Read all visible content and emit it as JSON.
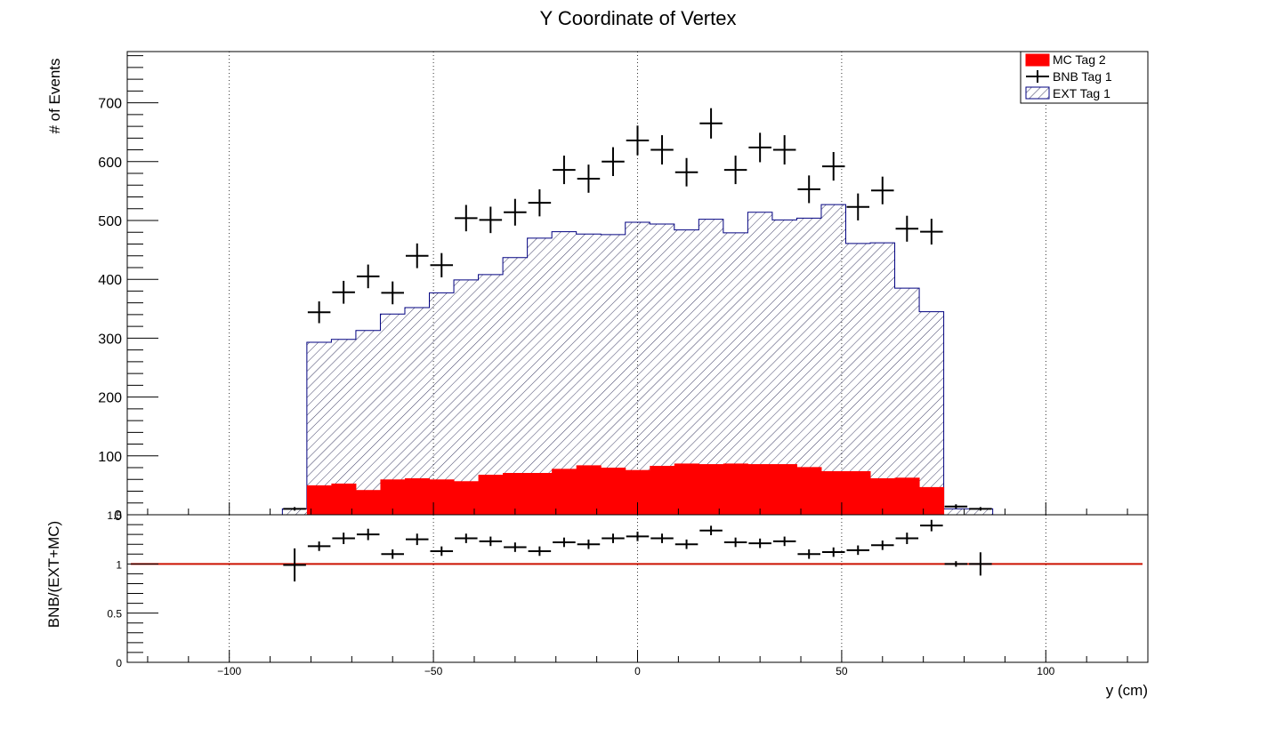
{
  "chart_data": [
    {
      "type": "bar",
      "title": "Y Coordinate of Vertex",
      "xlabel": "",
      "ylabel": "# of Events",
      "xlim": [
        -125,
        125
      ],
      "ylim": [
        0,
        787
      ],
      "grid": "vertical dotted",
      "legend": {
        "placement": "top-right",
        "entries": [
          "MC Tag 2",
          "BNB Tag 1",
          "EXT Tag 1"
        ]
      },
      "x_ticks": [
        "−100",
        "−50",
        "0",
        "50",
        "100"
      ],
      "y_ticks": [
        "700",
        "600",
        "500",
        "400",
        "300",
        "200",
        "100",
        "0"
      ],
      "bin_edges": [
        -87,
        -81,
        -75,
        -69,
        -63,
        -57,
        -51,
        -45,
        -39,
        -33,
        -27,
        -21,
        -15,
        -9,
        -3,
        3,
        9,
        15,
        21,
        27,
        33,
        39,
        45,
        51,
        57,
        63,
        69,
        75,
        81,
        87
      ],
      "series": [
        {
          "name": "EXT Tag 1",
          "kind": "hatched-histogram",
          "values": [
            10,
            293,
            298,
            313,
            341,
            352,
            377,
            399,
            408,
            437,
            470,
            481,
            477,
            476,
            497,
            494,
            484,
            502,
            479,
            514,
            501,
            504,
            527,
            461,
            462,
            385,
            345,
            10,
            10
          ]
        },
        {
          "name": "MC Tag 2",
          "kind": "filled-histogram",
          "values": [
            0,
            50,
            53,
            42,
            60,
            62,
            60,
            57,
            68,
            71,
            71,
            78,
            84,
            80,
            76,
            83,
            87,
            86,
            87,
            86,
            86,
            81,
            74,
            74,
            62,
            63,
            47,
            0,
            0
          ]
        },
        {
          "name": "BNB Tag 1",
          "kind": "points-with-errors",
          "values": [
            10,
            344,
            378,
            405,
            377,
            440,
            424,
            504,
            501,
            514,
            530,
            586,
            571,
            600,
            636,
            620,
            582,
            665,
            586,
            624,
            620,
            553,
            592,
            523,
            551,
            486,
            481,
            14,
            10
          ],
          "errors": [
            3,
            18.5,
            19.4,
            20.1,
            19.4,
            21,
            20.6,
            22.4,
            22.4,
            22.7,
            23,
            24.2,
            23.9,
            24.5,
            25.2,
            24.9,
            24.1,
            25.8,
            24.2,
            25,
            24.9,
            23.5,
            24.3,
            22.9,
            23.5,
            22,
            21.9,
            3.7,
            3
          ]
        }
      ]
    },
    {
      "type": "scatter",
      "title": "",
      "xlabel": "y (cm)",
      "ylabel": "BNB/(EXT+MC)",
      "xlim": [
        -125,
        125
      ],
      "ylim": [
        0,
        1.5
      ],
      "grid": "vertical dotted",
      "x_ticks": [
        "−100",
        "−50",
        "0",
        "50",
        "100"
      ],
      "y_ticks": [
        "1.5",
        "1",
        "0.5",
        "0"
      ],
      "reference_line": 1,
      "points": [
        {
          "x": -84,
          "y": 0.99,
          "err": 0.15
        },
        {
          "x": -78,
          "y": 1.18,
          "err": 0.03
        },
        {
          "x": -72,
          "y": 1.26,
          "err": 0.04
        },
        {
          "x": -66,
          "y": 1.3,
          "err": 0.04
        },
        {
          "x": -60,
          "y": 1.1,
          "err": 0.03
        },
        {
          "x": -54,
          "y": 1.25,
          "err": 0.04
        },
        {
          "x": -48,
          "y": 1.13,
          "err": 0.03
        },
        {
          "x": -42,
          "y": 1.26,
          "err": 0.03
        },
        {
          "x": -36,
          "y": 1.23,
          "err": 0.03
        },
        {
          "x": -30,
          "y": 1.17,
          "err": 0.03
        },
        {
          "x": -24,
          "y": 1.13,
          "err": 0.03
        },
        {
          "x": -18,
          "y": 1.22,
          "err": 0.03
        },
        {
          "x": -12,
          "y": 1.2,
          "err": 0.03
        },
        {
          "x": -6,
          "y": 1.26,
          "err": 0.03
        },
        {
          "x": 0,
          "y": 1.28,
          "err": 0.03
        },
        {
          "x": 6,
          "y": 1.26,
          "err": 0.03
        },
        {
          "x": 12,
          "y": 1.2,
          "err": 0.03
        },
        {
          "x": 18,
          "y": 1.34,
          "err": 0.03
        },
        {
          "x": 24,
          "y": 1.22,
          "err": 0.03
        },
        {
          "x": 30,
          "y": 1.21,
          "err": 0.03
        },
        {
          "x": 36,
          "y": 1.23,
          "err": 0.03
        },
        {
          "x": 42,
          "y": 1.1,
          "err": 0.03
        },
        {
          "x": 48,
          "y": 1.12,
          "err": 0.03
        },
        {
          "x": 54,
          "y": 1.14,
          "err": 0.03
        },
        {
          "x": 60,
          "y": 1.19,
          "err": 0.03
        },
        {
          "x": 66,
          "y": 1.26,
          "err": 0.04
        },
        {
          "x": 72,
          "y": 1.39,
          "err": 0.04
        },
        {
          "x": 78,
          "y": 1.0,
          "err": 0.01
        },
        {
          "x": 84,
          "y": 1.0,
          "err": 0.1
        }
      ]
    }
  ],
  "colors": {
    "mc_fill": "#ff0000",
    "ext_line": "#000080",
    "ext_hatch": "#2a2a55",
    "bnb": "#000000",
    "ratio_line": "#cc1100"
  }
}
